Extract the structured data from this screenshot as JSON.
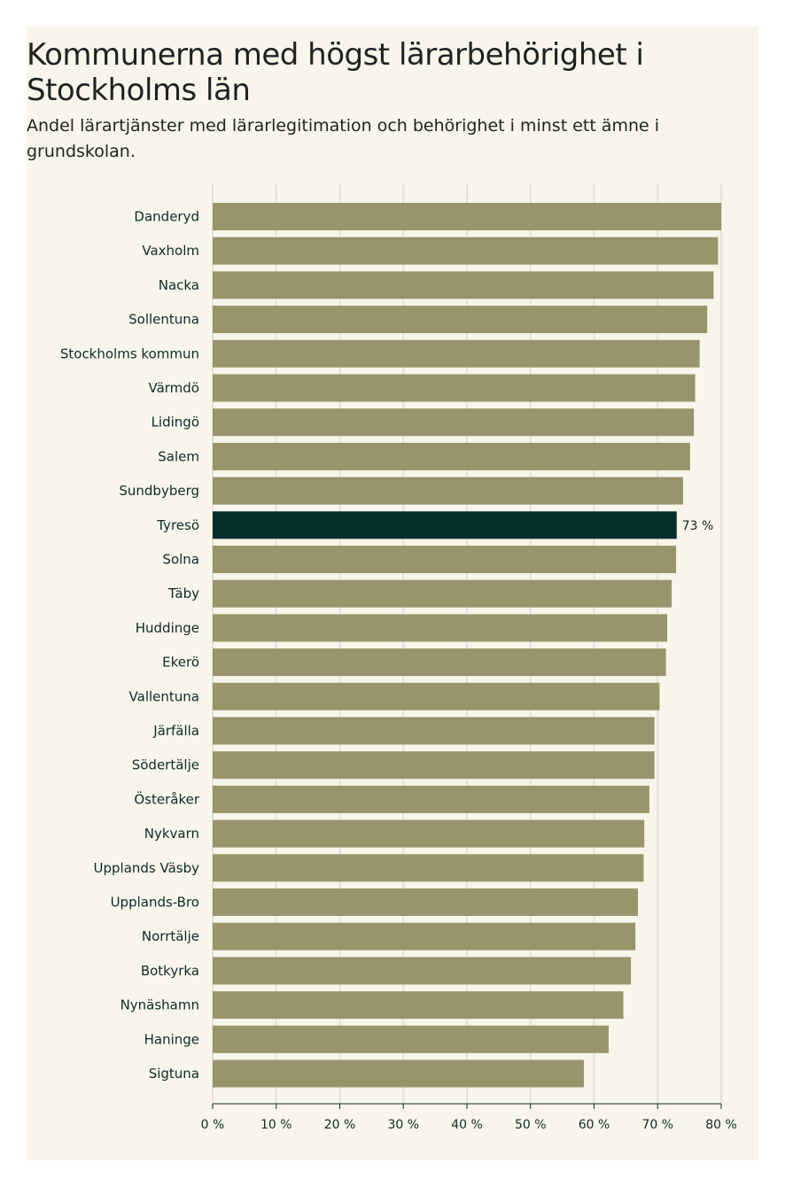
{
  "chart_data": {
    "type": "bar",
    "orientation": "horizontal",
    "title": "Kommunerna med högst lärarbehörighet i Stockholms län",
    "subtitle": "Andel lärartjänster med lärarlegitimation och behörighet i minst ett ämne i grundskolan.",
    "xlabel": "",
    "ylabel": "",
    "xlim": [
      0,
      80
    ],
    "ticks": [
      0,
      10,
      20,
      30,
      40,
      50,
      60,
      70,
      80
    ],
    "tick_labels": [
      "0 %",
      "10 %",
      "20 %",
      "30 %",
      "40 %",
      "50 %",
      "60 %",
      "70 %",
      "80 %"
    ],
    "grid": true,
    "categories": [
      "Danderyd",
      "Vaxholm",
      "Nacka",
      "Sollentuna",
      "Stockholms kommun",
      "Värmdö",
      "Lidingö",
      "Salem",
      "Sundbyberg",
      "Tyresö",
      "Solna",
      "Täby",
      "Huddinge",
      "Ekerö",
      "Vallentuna",
      "Järfälla",
      "Södertälje",
      "Österåker",
      "Nykvarn",
      "Upplands Väsby",
      "Upplands-Bro",
      "Norrtälje",
      "Botkyrka",
      "Nynäshamn",
      "Haninge",
      "Sigtuna"
    ],
    "values": [
      80,
      79.5,
      78.8,
      77.8,
      76.6,
      75.9,
      75.7,
      75.1,
      74.0,
      73,
      72.9,
      72.2,
      71.5,
      71.3,
      70.3,
      69.5,
      69.5,
      68.7,
      67.9,
      67.8,
      66.9,
      66.5,
      65.8,
      64.6,
      62.3,
      58.4
    ],
    "highlight": {
      "category": "Tyresö",
      "label": "73 %"
    },
    "colors": {
      "bar": "#99946c",
      "highlight": "#05302c",
      "grid": "#e4e2d8"
    }
  }
}
